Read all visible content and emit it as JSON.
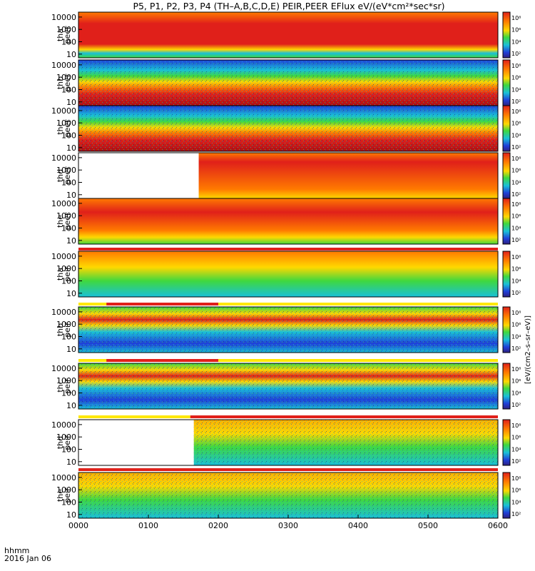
{
  "title": "P5, P1, P2, P3, P4 (TH–A,B,C,D,E) PEIR,PEER EFlux eV/(eV*cm²*sec*sr)",
  "time_axis": {
    "corner_top": "hhmm",
    "corner_bottom": "2016 Jan 06",
    "ticks": [
      "0000",
      "0100",
      "0200",
      "0300",
      "0400",
      "0500",
      "0600"
    ]
  },
  "colorbar_units_label": "[eV/(cm2–s–sr–eV)]",
  "colors": {
    "hot": "#e0201a",
    "warm": "#ff7a00",
    "mid": "#ffd800",
    "green": "#3fd83f",
    "cyan": "#19c0d8",
    "blue": "#1f3fd8",
    "low": "#202070",
    "flag_red": "#e0201a",
    "flag_yellow": "#ffe800"
  },
  "chart_data": {
    "type": "heatmap",
    "x_range_hours": [
      0,
      6
    ],
    "y_scale": "log",
    "ylim_eV": [
      5,
      25000
    ],
    "y_ticks": [
      "10000",
      "1000",
      "100",
      "10"
    ],
    "colorbar_ticks": [
      "10⁸",
      "10⁶",
      "10⁴",
      "10²"
    ],
    "panels": [
      {
        "probe": "tha",
        "species": "peer",
        "ylabel1": "tha",
        "ylabel2": "peer"
      },
      {
        "probe": "thb",
        "species": "peer",
        "ylabel1": "thb",
        "ylabel2": "peer"
      },
      {
        "probe": "thc",
        "species": "peer",
        "ylabel1": "thc",
        "ylabel2": "peer"
      },
      {
        "probe": "thd",
        "species": "peer",
        "ylabel1": "thd",
        "ylabel2": "peer"
      },
      {
        "probe": "the",
        "species": "peer",
        "ylabel1": "the",
        "ylabel2": "peer"
      },
      {
        "probe": "tha",
        "species": "peir",
        "ylabel1": "tha",
        "ylabel2": "peir"
      },
      {
        "probe": "thb",
        "species": "peir",
        "ylabel1": "thb",
        "ylabel2": "peir"
      },
      {
        "probe": "thc",
        "species": "peir",
        "ylabel1": "thc",
        "ylabel2": "peir"
      },
      {
        "probe": "thd",
        "species": "peir",
        "ylabel1": "thd",
        "ylabel2": "peir"
      },
      {
        "probe": "the",
        "species": "peir",
        "ylabel1": "the",
        "ylabel2": "peir"
      }
    ]
  }
}
